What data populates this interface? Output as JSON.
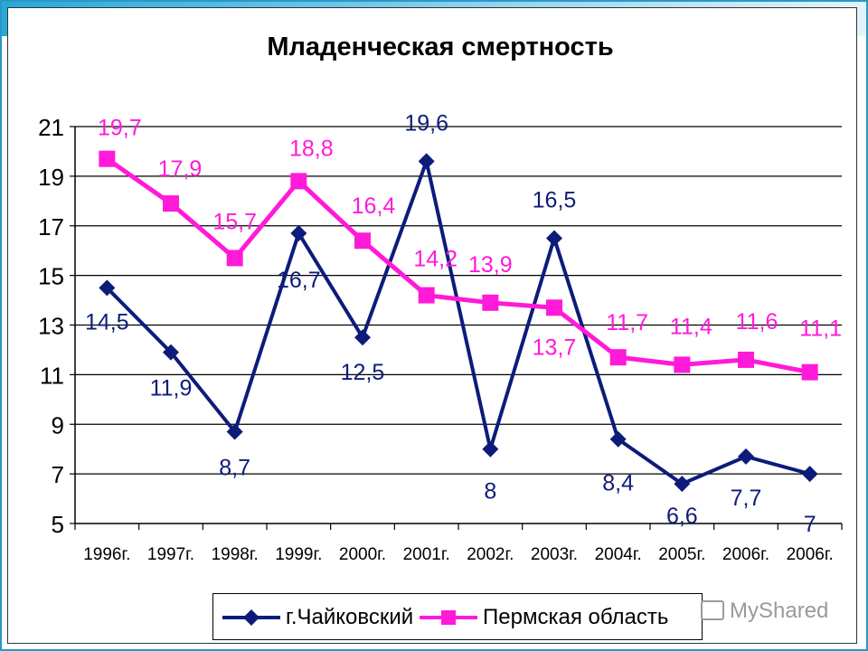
{
  "colors": {
    "accent_bar": "#27a9d6",
    "series_chaikovsky": "#0d1c7a",
    "series_perm": "#ff1ad9",
    "gridline": "#000000"
  },
  "watermark": {
    "text": "MyShared"
  },
  "legend": {
    "items": [
      {
        "label": "г.Чайковский",
        "marker": "diamond"
      },
      {
        "label": "Пермская область",
        "marker": "square"
      }
    ]
  },
  "chart_data": {
    "type": "line",
    "title": "Младенческая смертность",
    "xlabel": "",
    "ylabel": "",
    "ylim": [
      5,
      21
    ],
    "yticks": [
      5,
      7,
      9,
      11,
      13,
      15,
      17,
      19,
      21
    ],
    "grid": true,
    "legend_position": "bottom",
    "categories": [
      "1996г.",
      "1997г.",
      "1998г.",
      "1999г.",
      "2000г.",
      "2001г.",
      "2002г.",
      "2003г.",
      "2004г.",
      "2005г.",
      "2006г.",
      "2006г."
    ],
    "series": [
      {
        "name": "г.Чайковский",
        "marker": "diamond",
        "values": [
          14.5,
          11.9,
          8.7,
          16.7,
          12.5,
          19.6,
          8,
          16.5,
          8.4,
          6.6,
          7.7,
          7
        ],
        "data_labels": [
          "14,5",
          "11,9",
          "8,7",
          "16,7",
          "12,5",
          "19,6",
          "8",
          "16,5",
          "8,4",
          "6,6",
          "7,7",
          "7"
        ]
      },
      {
        "name": "Пермская область",
        "marker": "square",
        "values": [
          19.7,
          17.9,
          15.7,
          18.8,
          16.4,
          14.2,
          13.9,
          13.7,
          11.7,
          11.4,
          11.6,
          11.1
        ],
        "data_labels": [
          "19,7",
          "17,9",
          "15,7",
          "18,8",
          "16,4",
          "14,2",
          "13,9",
          "13,7",
          "11,7",
          "11,4",
          "11,6",
          "11,1"
        ]
      }
    ]
  }
}
